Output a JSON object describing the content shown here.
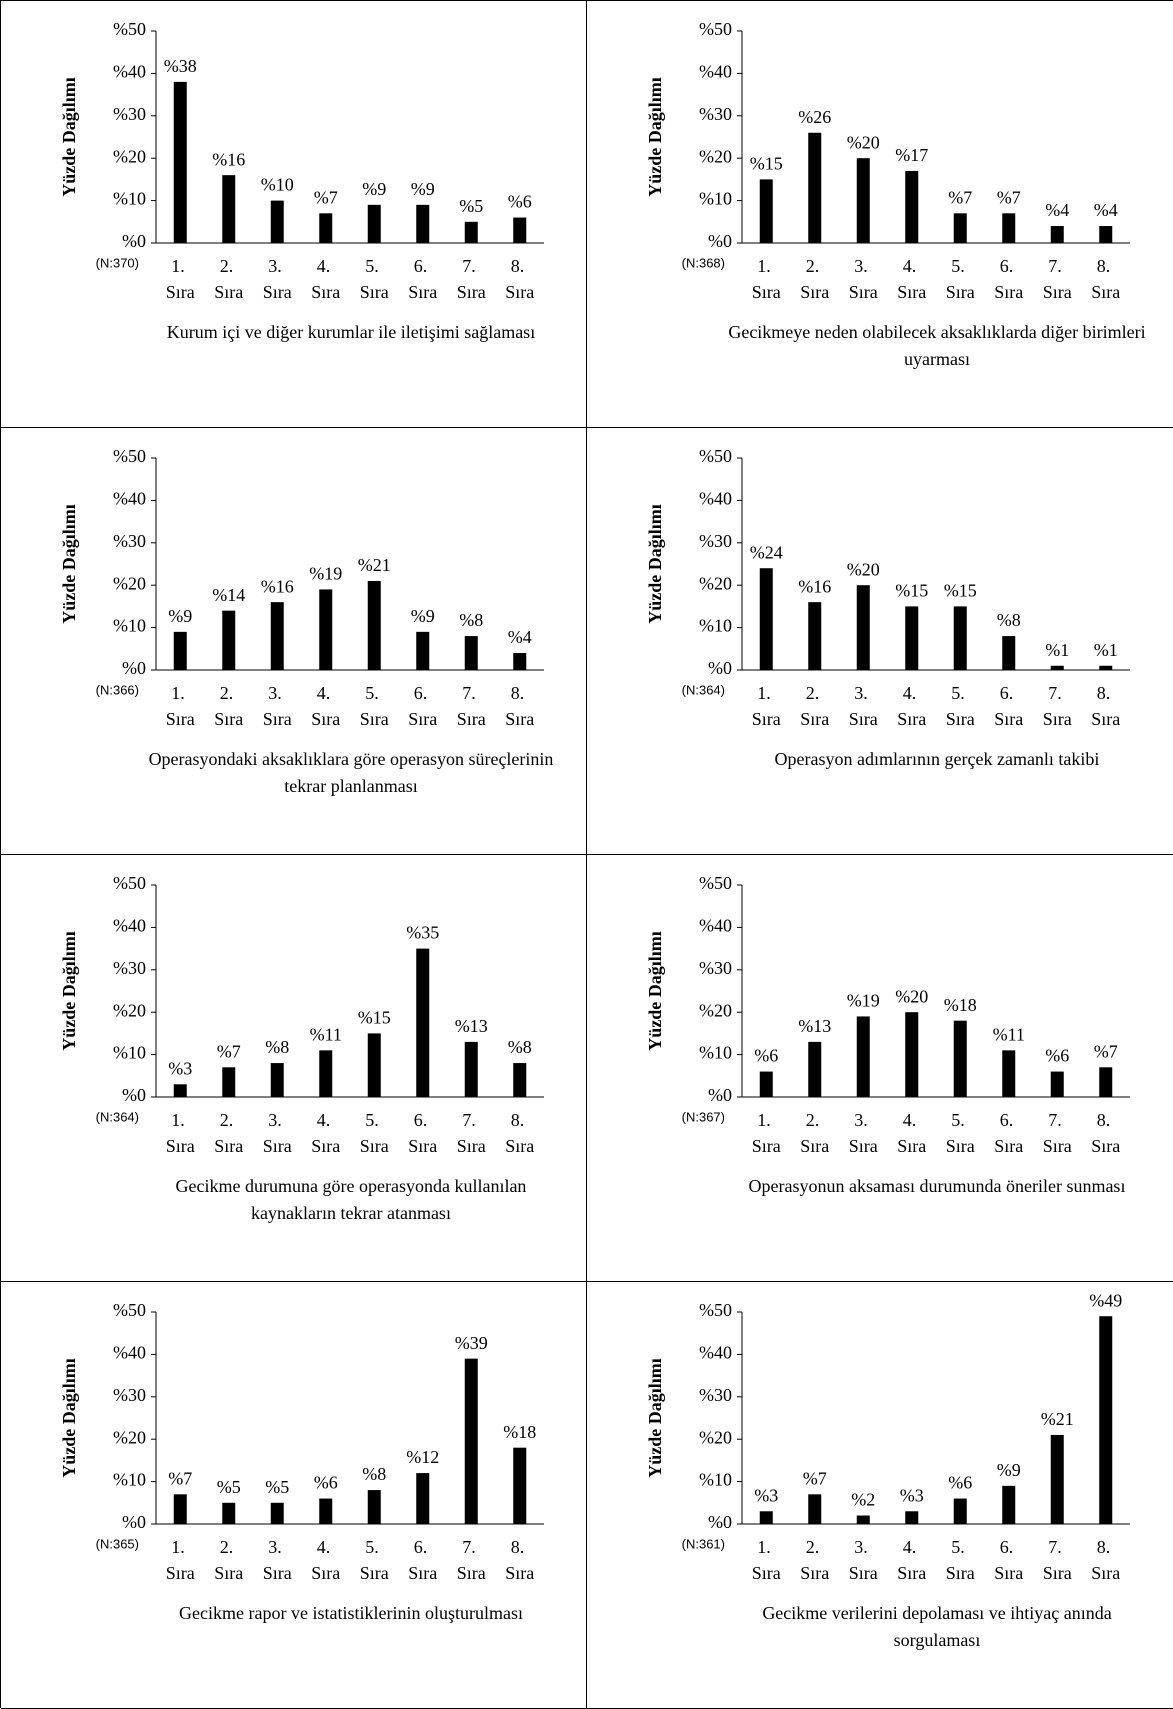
{
  "chart_data": [
    {
      "type": "bar",
      "title": "Kurum içi ve diğer kurumlar ile iletişimi sağlaması",
      "y_label": "Yüzde Dağılımı",
      "note": "(N:370)",
      "categories": [
        "1. Sıra",
        "2. Sıra",
        "3. Sıra",
        "4. Sıra",
        "5. Sıra",
        "6. Sıra",
        "7. Sıra",
        "8. Sıra"
      ],
      "values": [
        38,
        16,
        10,
        7,
        9,
        9,
        5,
        6
      ],
      "value_labels": [
        "%38",
        "%16",
        "%10",
        "%7",
        "%9",
        "%9",
        "%5",
        "%6"
      ],
      "color": "#000000",
      "ylim": [
        0,
        50
      ],
      "yticks": [
        {
          "value": 0,
          "label": "%0"
        },
        {
          "value": 10,
          "label": "%10"
        },
        {
          "value": 20,
          "label": "%20"
        },
        {
          "value": 30,
          "label": "%30"
        },
        {
          "value": 40,
          "label": "%40"
        },
        {
          "value": 50,
          "label": "%50"
        }
      ],
      "grid": false
    },
    {
      "type": "bar",
      "title": "Gecikmeye neden olabilecek aksaklıklarda diğer birimleri uyarması",
      "y_label": "Yüzde Dağılımı",
      "note": "(N:368)",
      "categories": [
        "1. Sıra",
        "2. Sıra",
        "3. Sıra",
        "4. Sıra",
        "5. Sıra",
        "6. Sıra",
        "7. Sıra",
        "8. Sıra"
      ],
      "values": [
        15,
        26,
        20,
        17,
        7,
        7,
        4,
        4
      ],
      "value_labels": [
        "%15",
        "%26",
        "%20",
        "%17",
        "%7",
        "%7",
        "%4",
        "%4"
      ],
      "color": "#000000",
      "ylim": [
        0,
        50
      ],
      "yticks": [
        {
          "value": 0,
          "label": "%0"
        },
        {
          "value": 10,
          "label": "%10"
        },
        {
          "value": 20,
          "label": "%20"
        },
        {
          "value": 30,
          "label": "%30"
        },
        {
          "value": 40,
          "label": "%40"
        },
        {
          "value": 50,
          "label": "%50"
        }
      ],
      "grid": false
    },
    {
      "type": "bar",
      "title": "Operasyondaki aksaklıklara göre operasyon süreçlerinin tekrar planlanması",
      "y_label": "Yüzde Dağılımı",
      "note": "(N:366)",
      "categories": [
        "1. Sıra",
        "2. Sıra",
        "3. Sıra",
        "4. Sıra",
        "5. Sıra",
        "6. Sıra",
        "7. Sıra",
        "8. Sıra"
      ],
      "values": [
        9,
        14,
        16,
        19,
        21,
        9,
        8,
        4
      ],
      "value_labels": [
        "%9",
        "%14",
        "%16",
        "%19",
        "%21",
        "%9",
        "%8",
        "%4"
      ],
      "color": "#000000",
      "ylim": [
        0,
        50
      ],
      "yticks": [
        {
          "value": 0,
          "label": "%0"
        },
        {
          "value": 10,
          "label": "%10"
        },
        {
          "value": 20,
          "label": "%20"
        },
        {
          "value": 30,
          "label": "%30"
        },
        {
          "value": 40,
          "label": "%40"
        },
        {
          "value": 50,
          "label": "%50"
        }
      ],
      "grid": false
    },
    {
      "type": "bar",
      "title": "Operasyon adımlarının gerçek zamanlı takibi",
      "y_label": "Yüzde Dağılımı",
      "note": "(N:364)",
      "categories": [
        "1. Sıra",
        "2. Sıra",
        "3. Sıra",
        "4. Sıra",
        "5. Sıra",
        "6. Sıra",
        "7. Sıra",
        "8. Sıra"
      ],
      "values": [
        24,
        16,
        20,
        15,
        15,
        8,
        1,
        1
      ],
      "value_labels": [
        "%24",
        "%16",
        "%20",
        "%15",
        "%15",
        "%8",
        "%1",
        "%1"
      ],
      "color": "#000000",
      "ylim": [
        0,
        50
      ],
      "yticks": [
        {
          "value": 0,
          "label": "%0"
        },
        {
          "value": 10,
          "label": "%10"
        },
        {
          "value": 20,
          "label": "%20"
        },
        {
          "value": 30,
          "label": "%30"
        },
        {
          "value": 40,
          "label": "%40"
        },
        {
          "value": 50,
          "label": "%50"
        }
      ],
      "grid": false
    },
    {
      "type": "bar",
      "title": "Gecikme durumuna göre operasyonda kullanılan kaynakların tekrar atanması",
      "y_label": "Yüzde Dağılımı",
      "note": "(N:364)",
      "categories": [
        "1. Sıra",
        "2. Sıra",
        "3. Sıra",
        "4. Sıra",
        "5. Sıra",
        "6. Sıra",
        "7. Sıra",
        "8. Sıra"
      ],
      "values": [
        3,
        7,
        8,
        11,
        15,
        35,
        13,
        8
      ],
      "value_labels": [
        "%3",
        "%7",
        "%8",
        "%11",
        "%15",
        "%35",
        "%13",
        "%8"
      ],
      "color": "#000000",
      "ylim": [
        0,
        50
      ],
      "yticks": [
        {
          "value": 0,
          "label": "%0"
        },
        {
          "value": 10,
          "label": "%10"
        },
        {
          "value": 20,
          "label": "%20"
        },
        {
          "value": 30,
          "label": "%30"
        },
        {
          "value": 40,
          "label": "%40"
        },
        {
          "value": 50,
          "label": "%50"
        }
      ],
      "grid": false
    },
    {
      "type": "bar",
      "title": "Operasyonun aksaması durumunda öneriler sunması",
      "y_label": "Yüzde Dağılımı",
      "note": "(N:367)",
      "categories": [
        "1. Sıra",
        "2. Sıra",
        "3. Sıra",
        "4. Sıra",
        "5. Sıra",
        "6. Sıra",
        "7. Sıra",
        "8. Sıra"
      ],
      "values": [
        6,
        13,
        19,
        20,
        18,
        11,
        6,
        7
      ],
      "value_labels": [
        "%6",
        "%13",
        "%19",
        "%20",
        "%18",
        "%11",
        "%6",
        "%7"
      ],
      "color": "#000000",
      "ylim": [
        0,
        50
      ],
      "yticks": [
        {
          "value": 0,
          "label": "%0"
        },
        {
          "value": 10,
          "label": "%10"
        },
        {
          "value": 20,
          "label": "%20"
        },
        {
          "value": 30,
          "label": "%30"
        },
        {
          "value": 40,
          "label": "%40"
        },
        {
          "value": 50,
          "label": "%50"
        }
      ],
      "grid": false
    },
    {
      "type": "bar",
      "title": "Gecikme rapor ve istatistiklerinin oluşturulması",
      "y_label": "Yüzde Dağılımı",
      "note": "(N:365)",
      "categories": [
        "1. Sıra",
        "2. Sıra",
        "3. Sıra",
        "4. Sıra",
        "5. Sıra",
        "6. Sıra",
        "7. Sıra",
        "8. Sıra"
      ],
      "values": [
        7,
        5,
        5,
        6,
        8,
        12,
        39,
        18
      ],
      "value_labels": [
        "%7",
        "%5",
        "%5",
        "%6",
        "%8",
        "%12",
        "%39",
        "%18"
      ],
      "color": "#000000",
      "ylim": [
        0,
        50
      ],
      "yticks": [
        {
          "value": 0,
          "label": "%0"
        },
        {
          "value": 10,
          "label": "%10"
        },
        {
          "value": 20,
          "label": "%20"
        },
        {
          "value": 30,
          "label": "%30"
        },
        {
          "value": 40,
          "label": "%40"
        },
        {
          "value": 50,
          "label": "%50"
        }
      ],
      "grid": false
    },
    {
      "type": "bar",
      "title": "Gecikme verilerini depolaması ve ihtiyaç anında sorgulaması",
      "y_label": "Yüzde Dağılımı",
      "note": "(N:361)",
      "categories": [
        "1. Sıra",
        "2. Sıra",
        "3. Sıra",
        "4. Sıra",
        "5. Sıra",
        "6. Sıra",
        "7. Sıra",
        "8. Sıra"
      ],
      "values": [
        3,
        7,
        2,
        3,
        6,
        9,
        21,
        49
      ],
      "value_labels": [
        "%3",
        "%7",
        "%2",
        "%3",
        "%6",
        "%9",
        "%21",
        "%49"
      ],
      "color": "#000000",
      "ylim": [
        0,
        50
      ],
      "yticks": [
        {
          "value": 0,
          "label": "%0"
        },
        {
          "value": 10,
          "label": "%10"
        },
        {
          "value": 20,
          "label": "%20"
        },
        {
          "value": 30,
          "label": "%30"
        },
        {
          "value": 40,
          "label": "%40"
        },
        {
          "value": 50,
          "label": "%50"
        }
      ],
      "grid": false
    }
  ]
}
